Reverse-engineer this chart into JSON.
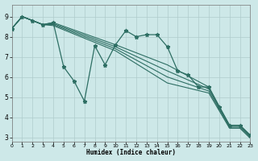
{
  "xlabel": "Humidex (Indice chaleur)",
  "background_color": "#cde8e8",
  "grid_color": "#b0cccc",
  "line_color": "#2d6e63",
  "xlim": [
    0,
    23
  ],
  "ylim": [
    2.8,
    9.6
  ],
  "yticks": [
    3,
    4,
    5,
    6,
    7,
    8,
    9
  ],
  "xticks": [
    0,
    1,
    2,
    3,
    4,
    5,
    6,
    7,
    8,
    9,
    10,
    11,
    12,
    13,
    14,
    15,
    16,
    17,
    18,
    19,
    20,
    21,
    22,
    23
  ],
  "main_series": {
    "x": [
      0,
      1,
      2,
      3,
      4,
      5,
      6,
      7,
      8,
      9,
      10,
      11,
      12,
      13,
      14,
      15,
      16,
      17,
      18,
      19,
      20,
      21,
      22,
      23
    ],
    "y": [
      8.4,
      9.0,
      8.8,
      8.6,
      8.7,
      6.5,
      5.8,
      4.8,
      7.55,
      6.6,
      7.6,
      8.3,
      8.0,
      8.1,
      8.1,
      7.5,
      6.3,
      6.1,
      5.5,
      5.5,
      4.5,
      3.6,
      3.6,
      3.1
    ]
  },
  "fan_lines": [
    {
      "x": [
        0,
        1,
        2,
        3,
        4,
        10,
        15,
        19,
        21,
        22,
        23
      ],
      "y": [
        8.4,
        9.0,
        8.8,
        8.6,
        8.7,
        7.6,
        6.6,
        5.5,
        3.6,
        3.6,
        3.1
      ]
    },
    {
      "x": [
        0,
        1,
        2,
        3,
        4,
        10,
        15,
        19,
        21,
        22,
        23
      ],
      "y": [
        8.4,
        9.0,
        8.8,
        8.6,
        8.65,
        7.5,
        6.3,
        5.4,
        3.55,
        3.55,
        3.05
      ]
    },
    {
      "x": [
        0,
        1,
        2,
        3,
        4,
        10,
        15,
        19,
        21,
        22,
        23
      ],
      "y": [
        8.4,
        9.0,
        8.8,
        8.6,
        8.6,
        7.4,
        6.0,
        5.3,
        3.5,
        3.5,
        3.0
      ]
    },
    {
      "x": [
        0,
        1,
        2,
        3,
        4,
        10,
        15,
        19,
        21,
        22,
        23
      ],
      "y": [
        8.4,
        9.0,
        8.8,
        8.6,
        8.55,
        7.3,
        5.7,
        5.2,
        3.45,
        3.45,
        2.95
      ]
    }
  ]
}
